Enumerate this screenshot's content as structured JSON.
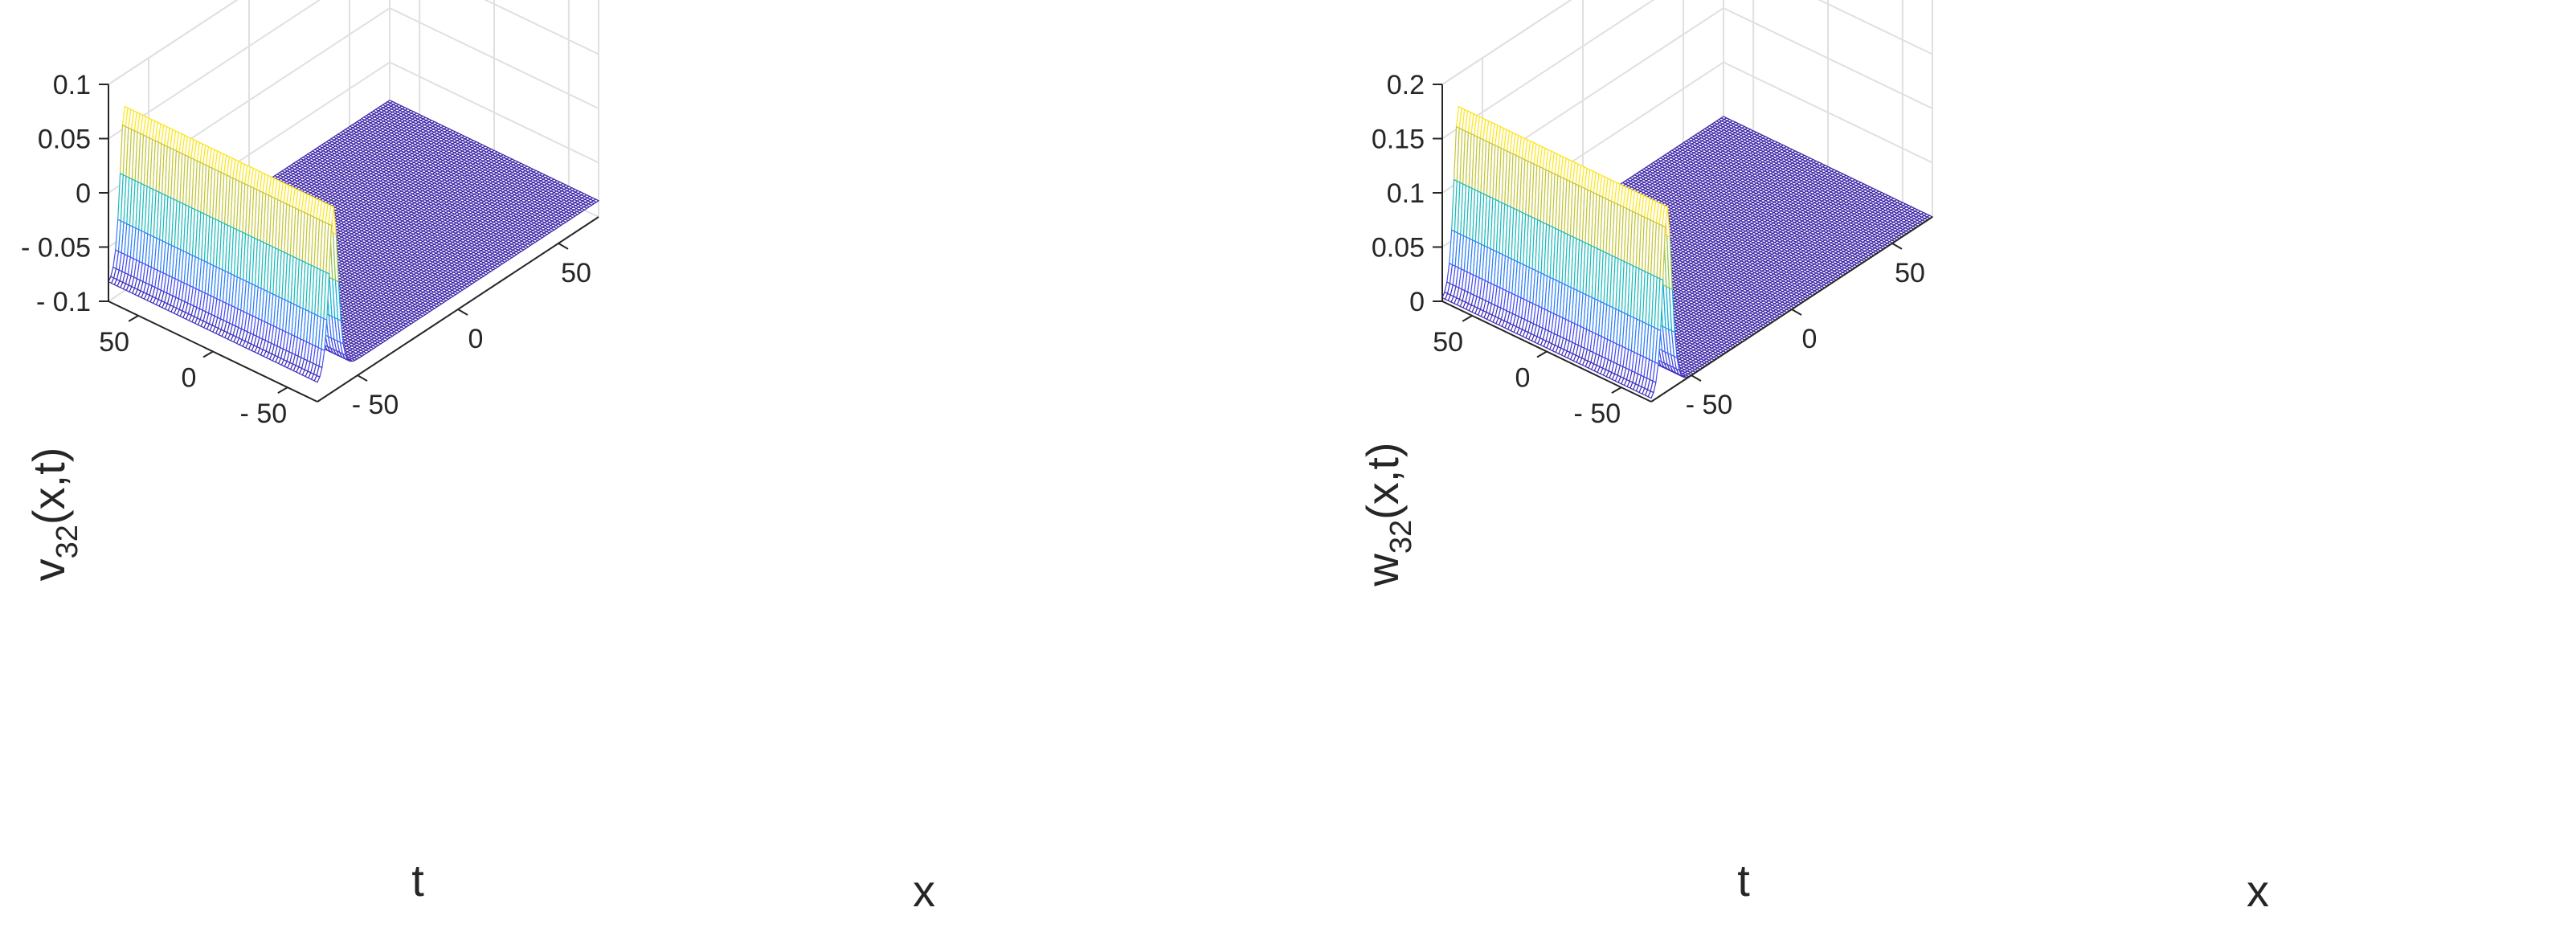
{
  "chart_data": [
    {
      "type": "surface",
      "title": "",
      "xlabel": "x",
      "ylabel": "t",
      "zlabel": {
        "base": "v",
        "sub": "32",
        "rest": "(x,t)"
      },
      "xlim": [
        -70,
        70
      ],
      "ylim": [
        -70,
        70
      ],
      "zlim": [
        -0.1,
        0.1
      ],
      "xticks": [
        -50,
        0,
        50
      ],
      "yticks": [
        -50,
        0,
        50
      ],
      "zticks": [
        -0.1,
        -0.05,
        0,
        0.05,
        0.1
      ],
      "zticklabels": [
        "- 0.1",
        "- 0.05",
        "0",
        "0.05",
        "0.1"
      ],
      "xticklabels": [
        "- 50",
        "0",
        "50"
      ],
      "yticklabels": [
        "- 50",
        "0",
        "50"
      ],
      "surface": {
        "baseline": -0.085,
        "peak": 0.07,
        "wave_center_x": -62,
        "wave_speed": 0.0,
        "width": 3,
        "colormap": "parula"
      },
      "grid": true
    },
    {
      "type": "surface",
      "title": "",
      "xlabel": "x",
      "ylabel": "t",
      "zlabel": {
        "base": "w",
        "sub": "32",
        "rest": "(x,t)"
      },
      "xlim": [
        -70,
        70
      ],
      "ylim": [
        -70,
        70
      ],
      "zlim": [
        0,
        0.2
      ],
      "xticks": [
        -50,
        0,
        50
      ],
      "yticks": [
        -50,
        0,
        50
      ],
      "zticks": [
        0,
        0.05,
        0.1,
        0.15,
        0.2
      ],
      "zticklabels": [
        "0",
        "0.05",
        "0.1",
        "0.15",
        "0.2"
      ],
      "xticklabels": [
        "- 50",
        "0",
        "50"
      ],
      "yticklabels": [
        "- 50",
        "0",
        "50"
      ],
      "surface": {
        "baseline": 0.0,
        "peak": 0.17,
        "wave_center_x": -62,
        "wave_speed": 0.0,
        "width": 3,
        "colormap": "parula"
      },
      "grid": true
    }
  ]
}
